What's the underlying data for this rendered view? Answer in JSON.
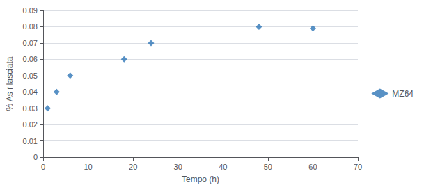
{
  "chart_data": {
    "type": "scatter",
    "x": [
      1,
      3,
      6,
      18,
      24,
      48,
      60
    ],
    "series": [
      {
        "name": "MZ64",
        "color": "#2E75B6",
        "marker": "diamond",
        "values": [
          0.03,
          0.04,
          0.05,
          0.06,
          0.07,
          0.08,
          0.079
        ]
      }
    ],
    "xlabel": "Tempo (h)",
    "ylabel": "% As rilasciata",
    "xlim": [
      0,
      70
    ],
    "ylim": [
      0,
      0.09
    ],
    "xticks": [
      0,
      10,
      20,
      30,
      40,
      50,
      60,
      70
    ],
    "yticks": [
      0,
      0.01,
      0.02,
      0.03,
      0.04,
      0.05,
      0.06,
      0.07,
      0.08,
      0.09
    ],
    "grid": "y",
    "legend": "right"
  }
}
